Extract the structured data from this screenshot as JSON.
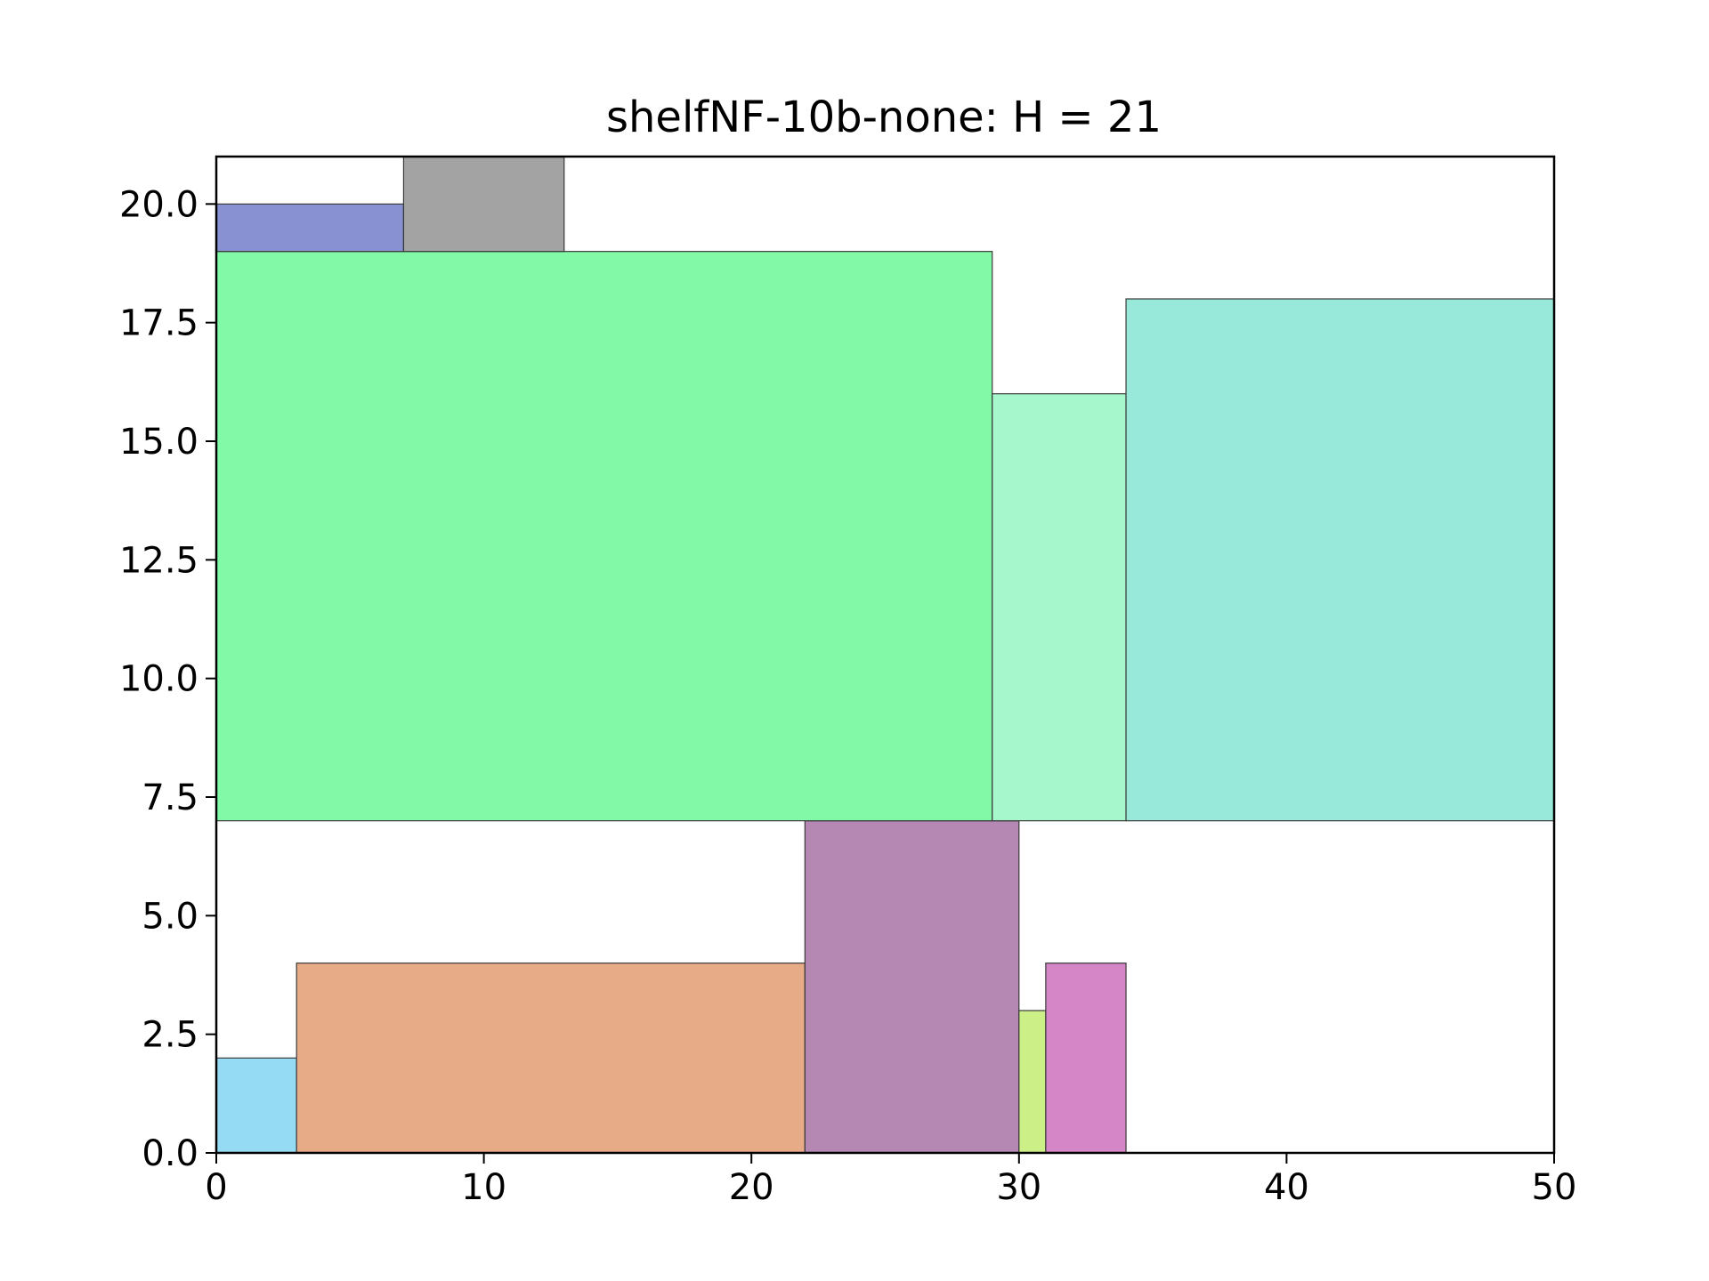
{
  "chart_data": {
    "type": "bar",
    "title": "shelfNF-10b-none: H = 21",
    "xlabel": "",
    "ylabel": "",
    "xlim": [
      0,
      50
    ],
    "ylim": [
      0,
      21
    ],
    "grid": false,
    "x_ticks": [
      "0",
      "10",
      "20",
      "30",
      "40",
      "50"
    ],
    "x_tick_values": [
      0,
      10,
      20,
      30,
      40,
      50
    ],
    "y_ticks": [
      "0.0",
      "2.5",
      "5.0",
      "7.5",
      "10.0",
      "12.5",
      "15.0",
      "17.5",
      "20.0"
    ],
    "y_tick_values": [
      0,
      2.5,
      5,
      7.5,
      10,
      12.5,
      15,
      17.5,
      20
    ],
    "rectangles": [
      {
        "x": 0,
        "y": 0,
        "w": 3,
        "h": 2,
        "color": "#95dbf3"
      },
      {
        "x": 3,
        "y": 0,
        "w": 19,
        "h": 4,
        "color": "#e8ab88"
      },
      {
        "x": 22,
        "y": 0,
        "w": 8,
        "h": 7,
        "color": "#b588b3"
      },
      {
        "x": 30,
        "y": 0,
        "w": 1,
        "h": 3,
        "color": "#cdef88"
      },
      {
        "x": 31,
        "y": 0,
        "w": 3,
        "h": 4,
        "color": "#d486c6"
      },
      {
        "x": 0,
        "y": 7,
        "w": 29,
        "h": 12,
        "color": "#81f9a6"
      },
      {
        "x": 29,
        "y": 7,
        "w": 5,
        "h": 9,
        "color": "#a6f7cc"
      },
      {
        "x": 34,
        "y": 7,
        "w": 16,
        "h": 11,
        "color": "#98e9d9"
      },
      {
        "x": 0,
        "y": 19,
        "w": 7,
        "h": 1,
        "color": "#8892d2"
      },
      {
        "x": 7,
        "y": 19,
        "w": 6,
        "h": 2,
        "color": "#a3a3a4"
      }
    ]
  }
}
